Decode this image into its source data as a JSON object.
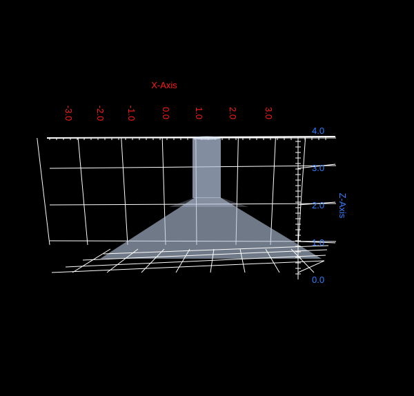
{
  "chart_data": {
    "type": "surface",
    "x_axis": {
      "title": "X-Axis",
      "ticks": [
        "-3.0",
        "-2.0",
        "-1.0",
        "0.0",
        "1.0",
        "2.0",
        "3.0"
      ],
      "color": "#ff1a1a"
    },
    "z_axis": {
      "title": "Z-Axis",
      "ticks": [
        "0.0",
        "1.0",
        "2.0",
        "3.0",
        "4.0"
      ],
      "color": "#2f7fff"
    },
    "range_z": [
      0,
      4
    ],
    "grid": true,
    "surface_color": "#b4c4dc",
    "background": "#000000"
  }
}
